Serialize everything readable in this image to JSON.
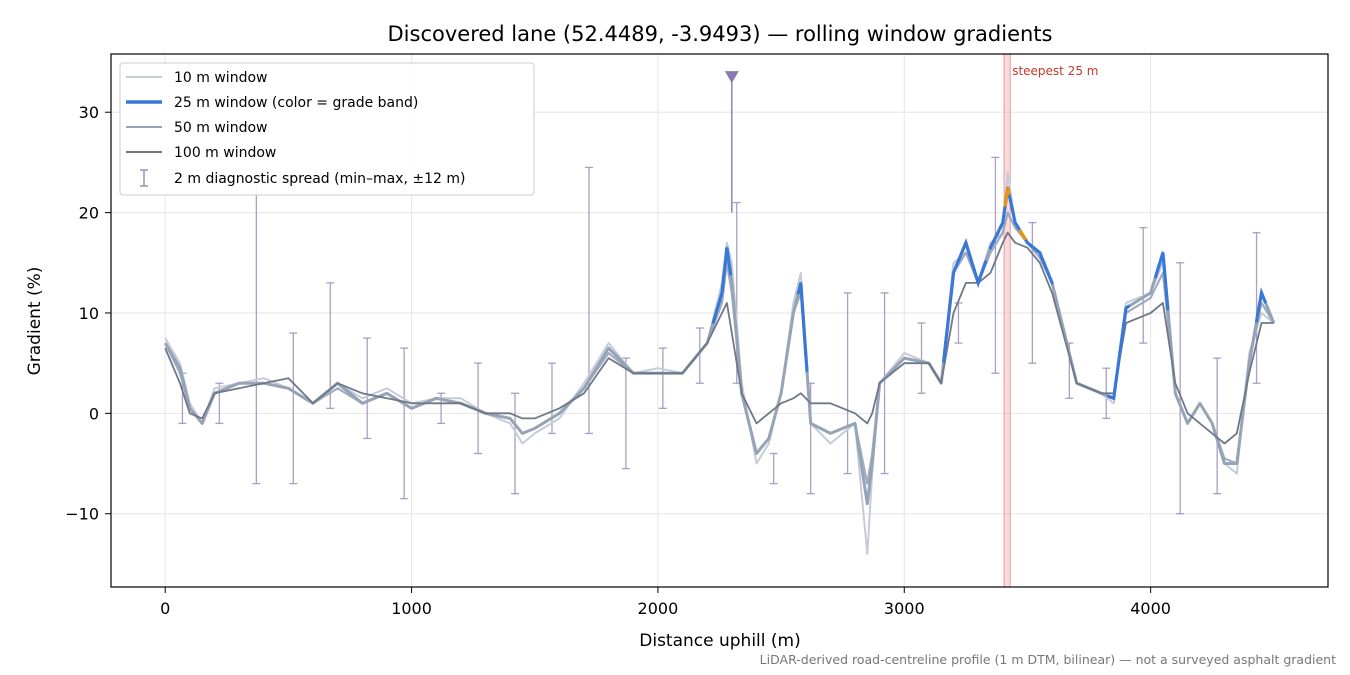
{
  "chart_data": {
    "type": "line",
    "title": "Discovered lane (52.4489, -3.9493) — rolling window gradients",
    "xlabel": "Distance uphill (m)",
    "ylabel": "Gradient (%)",
    "xlim": [
      -220,
      4720
    ],
    "ylim": [
      -17.3,
      35.8
    ],
    "x_ticks": [
      0,
      1000,
      2000,
      3000,
      4000
    ],
    "y_ticks": [
      -10,
      0,
      10,
      20,
      30
    ],
    "x_tick_labels": [
      "0",
      "1000",
      "2000",
      "3000",
      "4000"
    ],
    "y_tick_labels": [
      "−10",
      "0",
      "10",
      "20",
      "30"
    ],
    "grid": true,
    "legend_position": "top-left",
    "footnote": "LiDAR-derived road-centreline profile (1 m DTM, bilinear) — not a surveyed asphalt gradient",
    "colors": {
      "w10": "#c5ccd8",
      "w25_default": "#93a3b8",
      "w25_band_blue": "#3a78d8",
      "w25_band_orange": "#e69513",
      "w50": "#97a4b6",
      "w100": "#6f7889",
      "errorbar": "#9a8fb8",
      "marker": "#8a7ab0",
      "highlight": "#f4b9bb",
      "annotation": "#c0392b"
    },
    "series": [
      {
        "name": "10 m window",
        "color": "#c5ccd8",
        "x": [
          0,
          60,
          100,
          150,
          200,
          300,
          400,
          500,
          600,
          700,
          800,
          900,
          1000,
          1100,
          1200,
          1300,
          1400,
          1450,
          1500,
          1600,
          1700,
          1800,
          1900,
          2000,
          2100,
          2200,
          2260,
          2280,
          2300,
          2340,
          2400,
          2450,
          2500,
          2550,
          2580,
          2620,
          2700,
          2800,
          2850,
          2870,
          2900,
          3000,
          3100,
          3150,
          3200,
          3250,
          3300,
          3350,
          3400,
          3420,
          3450,
          3500,
          3550,
          3600,
          3700,
          3800,
          3850,
          3900,
          4000,
          4050,
          4100,
          4150,
          4200,
          4250,
          4300,
          4350,
          4400,
          4450,
          4500
        ],
        "y": [
          7.5,
          5,
          1,
          -1,
          2.5,
          3,
          3.5,
          2.5,
          1,
          3,
          1.5,
          2.5,
          1,
          1.5,
          1.5,
          0,
          -1,
          -3,
          -2,
          -0.5,
          3,
          7,
          4,
          4.5,
          4,
          7,
          13,
          17,
          15,
          3,
          -5,
          -3,
          2,
          11,
          14,
          -1,
          -3,
          -1,
          -14,
          -6,
          3,
          6,
          5,
          3,
          15,
          16,
          13,
          17,
          18,
          24,
          19,
          17,
          16,
          13,
          3,
          2,
          1,
          11,
          12,
          15,
          2,
          -1,
          1,
          -1,
          -5,
          -6,
          6,
          10,
          9
        ]
      },
      {
        "name": "25 m window (color = grade band)",
        "color": "#3a78d8",
        "x": [
          0,
          60,
          100,
          150,
          200,
          300,
          400,
          500,
          600,
          700,
          800,
          900,
          1000,
          1100,
          1200,
          1300,
          1400,
          1450,
          1500,
          1600,
          1700,
          1800,
          1900,
          2000,
          2100,
          2200,
          2260,
          2280,
          2300,
          2340,
          2400,
          2450,
          2500,
          2550,
          2580,
          2620,
          2700,
          2800,
          2850,
          2870,
          2900,
          3000,
          3100,
          3150,
          3200,
          3250,
          3300,
          3350,
          3400,
          3420,
          3450,
          3500,
          3550,
          3600,
          3700,
          3800,
          3850,
          3900,
          4000,
          4050,
          4100,
          4150,
          4200,
          4250,
          4300,
          4350,
          4400,
          4450,
          4500
        ],
        "y": [
          7,
          4.5,
          0.5,
          -1,
          2,
          3,
          3,
          2.5,
          1,
          3,
          1,
          2,
          0.5,
          1.5,
          1,
          0,
          -0.5,
          -2,
          -1.5,
          0,
          2.5,
          6.5,
          4,
          4,
          4,
          7,
          12,
          16.5,
          13,
          2,
          -4,
          -2.5,
          2,
          10,
          13,
          -1,
          -2,
          -1,
          -9,
          -5,
          3,
          5.5,
          5,
          3,
          14,
          17,
          13,
          16.5,
          19,
          22.5,
          19,
          17,
          16,
          13,
          3,
          2,
          1.5,
          10.5,
          12,
          16,
          2,
          -1,
          1,
          -1,
          -5,
          -5,
          5,
          12,
          9
        ]
      },
      {
        "name": "50 m window",
        "color": "#97a4b6",
        "x": [
          0,
          60,
          100,
          150,
          200,
          300,
          400,
          500,
          600,
          700,
          800,
          900,
          1000,
          1100,
          1200,
          1300,
          1400,
          1450,
          1500,
          1600,
          1700,
          1800,
          1900,
          2000,
          2100,
          2200,
          2260,
          2280,
          2300,
          2340,
          2400,
          2450,
          2500,
          2550,
          2580,
          2620,
          2700,
          2800,
          2850,
          2870,
          2900,
          3000,
          3100,
          3150,
          3200,
          3250,
          3300,
          3350,
          3400,
          3420,
          3450,
          3500,
          3550,
          3600,
          3700,
          3800,
          3850,
          3900,
          4000,
          4050,
          4100,
          4150,
          4200,
          4250,
          4300,
          4350,
          4400,
          4450,
          4500
        ],
        "y": [
          7,
          4,
          0.5,
          -1,
          2,
          3,
          3,
          2.5,
          1,
          2.5,
          1,
          2,
          0.5,
          1.5,
          1,
          0,
          -0.5,
          -2,
          -1.5,
          0,
          2.5,
          6,
          4,
          4,
          4,
          7,
          11,
          15,
          12,
          2,
          -4,
          -2.5,
          2,
          10,
          12,
          -1,
          -2,
          -1,
          -7,
          -4,
          3,
          5.5,
          5,
          3,
          14,
          16,
          13,
          16,
          18,
          20,
          18.5,
          17,
          15.5,
          13,
          3,
          2,
          1.5,
          10,
          11.5,
          14,
          2,
          -1,
          1,
          -1,
          -4.5,
          -5,
          5,
          11,
          9
        ]
      },
      {
        "name": "100 m window",
        "color": "#6f7889",
        "x": [
          0,
          60,
          100,
          150,
          200,
          300,
          400,
          500,
          600,
          700,
          800,
          900,
          1000,
          1100,
          1200,
          1300,
          1400,
          1450,
          1500,
          1600,
          1700,
          1800,
          1900,
          2000,
          2100,
          2200,
          2260,
          2280,
          2300,
          2340,
          2400,
          2450,
          2500,
          2550,
          2580,
          2620,
          2700,
          2800,
          2850,
          2870,
          2900,
          3000,
          3100,
          3150,
          3200,
          3250,
          3300,
          3350,
          3400,
          3420,
          3450,
          3500,
          3550,
          3600,
          3700,
          3800,
          3850,
          3900,
          4000,
          4050,
          4100,
          4150,
          4200,
          4250,
          4300,
          4350,
          4400,
          4450,
          4500
        ],
        "y": [
          6.5,
          3,
          0,
          -0.5,
          2,
          2.5,
          3,
          3.5,
          1,
          3,
          2,
          1.5,
          1,
          1,
          1,
          0,
          0,
          -0.5,
          -0.5,
          0.5,
          2,
          5.5,
          4,
          4,
          4,
          7,
          10,
          11,
          8,
          2,
          -1,
          0,
          1,
          1.5,
          2,
          1,
          1,
          0,
          -1,
          0,
          3,
          5,
          5,
          3,
          10,
          13,
          13,
          14,
          17,
          18,
          17,
          16.5,
          15,
          12,
          3,
          2,
          2,
          9,
          10,
          11,
          3,
          0,
          -1,
          -2,
          -3,
          -2,
          4,
          9,
          9
        ]
      }
    ],
    "band_highlights": [
      {
        "band": "blue",
        "x_ranges": [
          [
            2225,
            2295
          ],
          [
            2570,
            2605
          ],
          [
            3160,
            3330
          ],
          [
            3350,
            3600
          ],
          [
            3830,
            3910
          ],
          [
            4020,
            4070
          ],
          [
            4430,
            4465
          ]
        ]
      },
      {
        "band": "orange",
        "x_ranges": [
          [
            3410,
            3425
          ],
          [
            3470,
            3490
          ]
        ]
      }
    ],
    "error_bars": {
      "label": "2 m diagnostic spread (min–max, ±12 m)",
      "x": [
        70,
        220,
        370,
        520,
        670,
        820,
        970,
        1120,
        1270,
        1420,
        1570,
        1720,
        1870,
        2020,
        2170,
        2320,
        2470,
        2620,
        2770,
        2920,
        3070,
        3220,
        3370,
        3520,
        3670,
        3820,
        3970,
        4120,
        4270,
        4430
      ],
      "low": [
        -1,
        -1,
        -7,
        -7,
        0.5,
        -2.5,
        -8.5,
        -1,
        -4,
        -8,
        -2,
        -2,
        -5.5,
        0.5,
        3,
        3,
        -7,
        -8,
        -6,
        -6,
        2,
        7,
        4,
        5,
        1.5,
        -0.5,
        7,
        -10,
        -8,
        3
      ],
      "high": [
        4,
        3,
        24,
        8,
        13,
        7.5,
        6.5,
        2,
        5,
        2,
        5,
        24.5,
        5.5,
        6.5,
        8.5,
        21,
        -4,
        3,
        12,
        12,
        9,
        11,
        25.5,
        19,
        7,
        4.5,
        18.5,
        15,
        5.5,
        18
      ]
    },
    "annotations": [
      {
        "kind": "marker",
        "x": 2300,
        "y": 33.5,
        "shape": "triangle-down"
      },
      {
        "kind": "vspan",
        "x_range": [
          3405,
          3430
        ],
        "label": "steepest 25 m"
      }
    ]
  }
}
